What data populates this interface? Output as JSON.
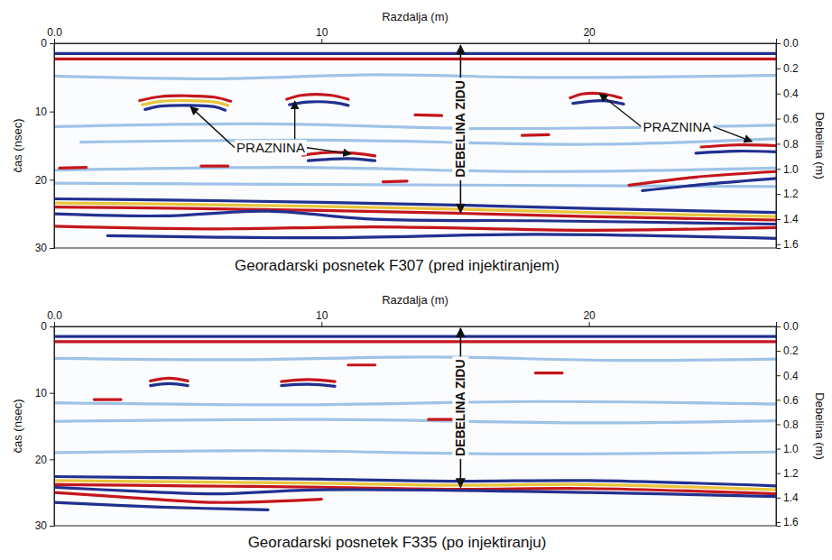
{
  "chart_data": [
    {
      "type": "radargram",
      "title": "Georadarski posnetek F307 (pred injektiranjem)",
      "x_label": "Razdalja (m)",
      "y_label": "čas (nsec)",
      "y2_label": "Debelina (m)",
      "xlim": [
        0,
        27
      ],
      "xticks": [
        {
          "value": 0,
          "label": "0.0"
        },
        10,
        20
      ],
      "ylim": [
        0,
        30
      ],
      "yticks": [
        0,
        10,
        20,
        30
      ],
      "y2lim": [
        0,
        1.63
      ],
      "y2ticks": [
        {
          "value": 0,
          "label": "0.0"
        },
        {
          "value": 0.2,
          "label": "0.2"
        },
        {
          "value": 0.4,
          "label": "0.4"
        },
        {
          "value": 0.6,
          "label": "0.6"
        },
        {
          "value": 0.8,
          "label": "0.8"
        },
        {
          "value": 1.0,
          "label": "1.0"
        },
        {
          "value": 1.2,
          "label": "1.2"
        },
        {
          "value": 1.4,
          "label": "1.4"
        },
        {
          "value": 1.6,
          "label": "1.6"
        }
      ],
      "series": [
        {
          "color": "#22308f",
          "x": [
            0,
            27
          ],
          "values": [
            1.5,
            1.5
          ]
        },
        {
          "color": "#c4161c",
          "x": [
            0,
            27
          ],
          "values": [
            2.3,
            2.3
          ]
        },
        {
          "color": "#9fc3e6",
          "x": [
            0,
            6,
            12,
            18,
            27
          ],
          "values": [
            4.8,
            5.2,
            4.6,
            5.0,
            4.7
          ]
        },
        {
          "color": "#9fc3e6",
          "x": [
            0,
            8,
            16,
            27
          ],
          "values": [
            12.2,
            11.8,
            12.5,
            12.0
          ]
        },
        {
          "color": "#9fc3e6",
          "x": [
            1,
            10,
            20,
            27
          ],
          "values": [
            14.5,
            14.2,
            14.8,
            14.0
          ]
        },
        {
          "color": "#9fc3e6",
          "x": [
            0,
            9,
            18,
            27
          ],
          "values": [
            18.6,
            18.2,
            18.8,
            18.3
          ]
        },
        {
          "color": "#9fc3e6",
          "x": [
            0,
            27
          ],
          "values": [
            20.5,
            21.0
          ]
        },
        {
          "color": "#c4161c",
          "x": [
            3.2,
            4.0,
            5.0,
            6.0,
            6.6
          ],
          "values": [
            8.4,
            7.8,
            7.7,
            7.9,
            8.5
          ]
        },
        {
          "color": "#e9c53a",
          "x": [
            3.3,
            4.0,
            5.0,
            6.0,
            6.5
          ],
          "values": [
            9.0,
            8.5,
            8.4,
            8.6,
            9.1
          ]
        },
        {
          "color": "#22308f",
          "x": [
            3.4,
            4.0,
            5.0,
            6.0,
            6.4
          ],
          "values": [
            9.7,
            9.2,
            9.1,
            9.3,
            9.8
          ]
        },
        {
          "color": "#c4161c",
          "x": [
            8.7,
            9.3,
            10.3,
            11.0
          ],
          "values": [
            8.2,
            7.6,
            7.6,
            8.2
          ]
        },
        {
          "color": "#22308f",
          "x": [
            8.8,
            9.5,
            10.5,
            11.0
          ],
          "values": [
            9.0,
            8.6,
            8.7,
            9.1
          ]
        },
        {
          "color": "#c4161c",
          "x": [
            9.3,
            10.2,
            11.2,
            12.0
          ],
          "values": [
            16.4,
            16.0,
            16.1,
            16.5
          ]
        },
        {
          "color": "#22308f",
          "x": [
            9.5,
            11.0,
            12.0
          ],
          "values": [
            17.2,
            16.9,
            17.2
          ]
        },
        {
          "color": "#c4161c",
          "x": [
            19.3,
            19.8,
            20.5,
            21.2
          ],
          "values": [
            8.0,
            7.4,
            7.4,
            8.0
          ]
        },
        {
          "color": "#22308f",
          "x": [
            19.4,
            20.5,
            21.3
          ],
          "values": [
            8.8,
            8.4,
            8.9
          ]
        },
        {
          "color": "#c4161c",
          "x": [
            24.2,
            25.5,
            27
          ],
          "values": [
            15.2,
            14.9,
            15.0
          ]
        },
        {
          "color": "#22308f",
          "x": [
            24.0,
            25.5,
            27
          ],
          "values": [
            16.1,
            15.8,
            15.9
          ]
        },
        {
          "color": "#c4161c",
          "x": [
            21.5,
            24.0,
            27
          ],
          "values": [
            20.8,
            19.6,
            18.8
          ]
        },
        {
          "color": "#22308f",
          "x": [
            22.0,
            24.5,
            27
          ],
          "values": [
            21.6,
            20.6,
            19.8
          ]
        },
        {
          "color": "#c4161c",
          "x": [
            0.2,
            1.2
          ],
          "values": [
            18.3,
            18.2
          ]
        },
        {
          "color": "#c4161c",
          "x": [
            5.5,
            6.5
          ],
          "values": [
            18.0,
            18.0
          ]
        },
        {
          "color": "#c4161c",
          "x": [
            13.5,
            14.5
          ],
          "values": [
            10.5,
            10.6
          ]
        },
        {
          "color": "#c4161c",
          "x": [
            17.5,
            18.5
          ],
          "values": [
            13.5,
            13.4
          ]
        },
        {
          "color": "#c4161c",
          "x": [
            12.3,
            13.2
          ],
          "values": [
            20.3,
            20.2
          ]
        },
        {
          "color": "#22308f",
          "x": [
            0,
            5,
            10,
            15,
            20,
            27
          ],
          "values": [
            22.8,
            23.0,
            23.3,
            23.7,
            24.2,
            24.8
          ]
        },
        {
          "color": "#e9c53a",
          "x": [
            0,
            5,
            10,
            15,
            20,
            27
          ],
          "values": [
            23.4,
            23.6,
            23.9,
            24.3,
            24.8,
            25.4
          ]
        },
        {
          "color": "#c4161c",
          "x": [
            0,
            5,
            10,
            15,
            20,
            27
          ],
          "values": [
            24.0,
            24.2,
            24.5,
            24.9,
            25.4,
            25.9
          ]
        },
        {
          "color": "#22308f",
          "x": [
            0,
            4,
            8,
            12,
            18,
            27
          ],
          "values": [
            25.0,
            25.3,
            24.6,
            25.8,
            26.0,
            26.5
          ]
        },
        {
          "color": "#c4161c",
          "x": [
            0,
            6,
            12,
            20,
            27
          ],
          "values": [
            26.8,
            27.2,
            26.9,
            27.4,
            27.0
          ]
        },
        {
          "color": "#22308f",
          "x": [
            2,
            10,
            18,
            27
          ],
          "values": [
            28.2,
            28.5,
            28.0,
            28.6
          ]
        }
      ],
      "annotations": [
        {
          "text": "PRAZNINA",
          "x": 8.1,
          "y": 15.3,
          "arrows": [
            {
              "x": 5.1,
              "y": 9.3
            },
            {
              "x": 9.0,
              "y": 8.5
            },
            {
              "x": 11.1,
              "y": 16.2
            }
          ]
        },
        {
          "text": "PRAZNINA",
          "x": 23.3,
          "y": 12.2,
          "arrows": [
            {
              "x": 20.4,
              "y": 7.4
            },
            {
              "x": 26.1,
              "y": 14.4
            }
          ]
        }
      ],
      "thickness": {
        "text": "DEBELINA ZIDU",
        "x": 15.2,
        "y": [
          0.3,
          24.8
        ]
      }
    },
    {
      "type": "radargram",
      "title": "Georadarski posnetek F335 (po injektiranju)",
      "x_label": "Razdalja (m)",
      "y_label": "čas (nsec)",
      "y2_label": "Debelina (m)",
      "xlim": [
        0,
        27
      ],
      "xticks": [
        {
          "value": 0,
          "label": "0.0"
        },
        10,
        20
      ],
      "ylim": [
        0,
        30
      ],
      "yticks": [
        0,
        10,
        20,
        30
      ],
      "y2lim": [
        0,
        1.63
      ],
      "y2ticks": [
        {
          "value": 0,
          "label": "0.0"
        },
        {
          "value": 0.2,
          "label": "0.2"
        },
        {
          "value": 0.4,
          "label": "0.4"
        },
        {
          "value": 0.6,
          "label": "0.6"
        },
        {
          "value": 0.8,
          "label": "0.8"
        },
        {
          "value": 1.0,
          "label": "1.0"
        },
        {
          "value": 1.2,
          "label": "1.2"
        },
        {
          "value": 1.4,
          "label": "1.4"
        },
        {
          "value": 1.6,
          "label": "1.6"
        }
      ],
      "series": [
        {
          "color": "#22308f",
          "x": [
            0,
            27
          ],
          "values": [
            1.5,
            1.5
          ]
        },
        {
          "color": "#c4161c",
          "x": [
            0,
            27
          ],
          "values": [
            2.3,
            2.3
          ]
        },
        {
          "color": "#9fc3e6",
          "x": [
            0,
            7,
            14,
            21,
            27
          ],
          "values": [
            4.8,
            5.0,
            4.6,
            5.1,
            4.9
          ]
        },
        {
          "color": "#9fc3e6",
          "x": [
            0,
            9,
            18,
            27
          ],
          "values": [
            11.5,
            11.8,
            11.3,
            11.7
          ]
        },
        {
          "color": "#9fc3e6",
          "x": [
            0,
            10,
            20,
            27
          ],
          "values": [
            14.3,
            14.0,
            14.5,
            14.2
          ]
        },
        {
          "color": "#9fc3e6",
          "x": [
            0,
            8,
            17,
            27
          ],
          "values": [
            19.0,
            18.7,
            19.2,
            18.9
          ]
        },
        {
          "color": "#c4161c",
          "x": [
            3.6,
            4.3,
            5.0
          ],
          "values": [
            8.2,
            7.8,
            8.2
          ]
        },
        {
          "color": "#22308f",
          "x": [
            3.6,
            4.3,
            5.0
          ],
          "values": [
            8.9,
            8.6,
            8.9
          ]
        },
        {
          "color": "#c4161c",
          "x": [
            8.5,
            9.5,
            10.5
          ],
          "values": [
            8.3,
            8.0,
            8.3
          ]
        },
        {
          "color": "#22308f",
          "x": [
            8.5,
            9.5,
            10.5
          ],
          "values": [
            8.9,
            8.7,
            9.0
          ]
        },
        {
          "color": "#c4161c",
          "x": [
            1.5,
            2.5
          ],
          "values": [
            11.0,
            11.0
          ]
        },
        {
          "color": "#c4161c",
          "x": [
            11.0,
            12.0
          ],
          "values": [
            5.8,
            5.8
          ]
        },
        {
          "color": "#c4161c",
          "x": [
            18.0,
            19.0
          ],
          "values": [
            7.0,
            7.0
          ]
        },
        {
          "color": "#c4161c",
          "x": [
            14.0,
            15.0
          ],
          "values": [
            14.0,
            14.0
          ]
        },
        {
          "color": "#22308f",
          "x": [
            0,
            5,
            10,
            15,
            20,
            27
          ],
          "values": [
            22.6,
            22.8,
            23.0,
            23.3,
            23.2,
            24.0
          ]
        },
        {
          "color": "#e9c53a",
          "x": [
            0,
            5,
            10,
            15,
            20,
            27
          ],
          "values": [
            23.2,
            23.4,
            23.6,
            23.9,
            23.8,
            24.6
          ]
        },
        {
          "color": "#c4161c",
          "x": [
            0,
            5,
            10,
            15,
            20,
            27
          ],
          "values": [
            23.8,
            24.0,
            24.2,
            24.5,
            24.4,
            25.2
          ]
        },
        {
          "color": "#22308f",
          "x": [
            0,
            3,
            6,
            10,
            20,
            27
          ],
          "values": [
            24.2,
            24.8,
            25.2,
            24.6,
            25.0,
            25.6
          ]
        },
        {
          "color": "#c4161c",
          "x": [
            0,
            3,
            6,
            10
          ],
          "values": [
            25.0,
            25.8,
            26.5,
            26.0
          ]
        },
        {
          "color": "#22308f",
          "x": [
            0,
            4,
            8
          ],
          "values": [
            26.5,
            27.2,
            27.6
          ]
        }
      ],
      "thickness": {
        "text": "DEBELINA ZIDU",
        "x": 15.2,
        "y": [
          0.3,
          24.2
        ]
      }
    }
  ]
}
